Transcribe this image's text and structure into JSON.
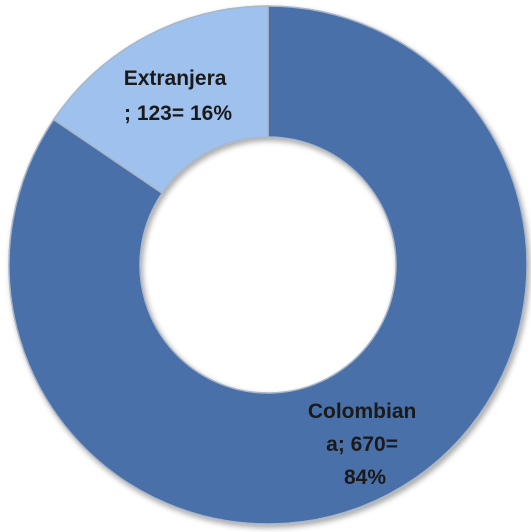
{
  "chart_data": {
    "type": "pie",
    "variant": "doughnut",
    "title": "",
    "slices": [
      {
        "name": "Colombiana",
        "value": 670,
        "percent": 84,
        "color": "#4a70a8",
        "label_lines": [
          "Colombian",
          "a; 670=",
          "84%"
        ]
      },
      {
        "name": "Extranjera",
        "value": 123,
        "percent": 16,
        "color": "#9ec1ee",
        "label_lines": [
          "Extranjera",
          "; 123= 16%"
        ]
      }
    ],
    "legend": "none",
    "border_color": "#a9b6c8"
  }
}
